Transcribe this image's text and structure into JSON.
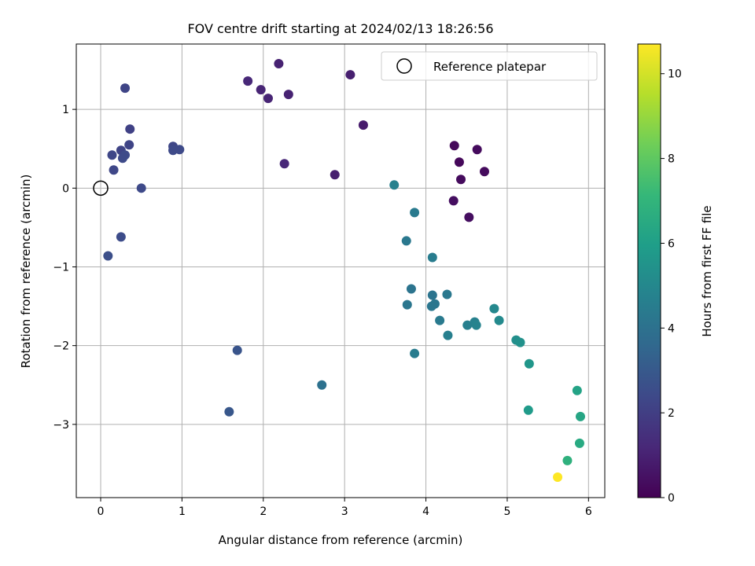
{
  "chart_data": {
    "type": "scatter",
    "title": "FOV centre drift starting at 2024/02/13 18:26:56",
    "xlabel": "Angular distance from reference (arcmin)",
    "ylabel": "Rotation from reference (arcmin)",
    "xlim": [
      -0.3,
      6.2
    ],
    "ylim": [
      -3.93,
      1.83
    ],
    "xticks": [
      0,
      1,
      2,
      3,
      4,
      5,
      6
    ],
    "xtick_labels": [
      "0",
      "1",
      "2",
      "3",
      "4",
      "5",
      "6"
    ],
    "yticks": [
      -3,
      -2,
      -1,
      0,
      1
    ],
    "ytick_labels": [
      "−3",
      "−2",
      "−1",
      "0",
      "1"
    ],
    "grid": true,
    "legend": {
      "position": "top-right",
      "label": "Reference platepar"
    },
    "reference": {
      "x": 0,
      "y": 0
    },
    "colorbar": {
      "label": "Hours from first FF file",
      "range": [
        0,
        10.7
      ],
      "ticks": [
        0,
        2,
        4,
        6,
        8,
        10
      ],
      "tick_labels": [
        "0",
        "2",
        "4",
        "6",
        "8",
        "10"
      ],
      "colormap": "viridis"
    },
    "series": [
      {
        "points": [
          {
            "x": 4.35,
            "y": 0.54,
            "h": 0.2
          },
          {
            "x": 4.63,
            "y": 0.49,
            "h": 0.3
          },
          {
            "x": 4.72,
            "y": 0.21,
            "h": 0.3
          },
          {
            "x": 4.41,
            "y": 0.33,
            "h": 0.2
          },
          {
            "x": 4.43,
            "y": 0.11,
            "h": 0.3
          },
          {
            "x": 4.34,
            "y": -0.16,
            "h": 0.4
          },
          {
            "x": 4.53,
            "y": -0.37,
            "h": 0.4
          },
          {
            "x": 3.23,
            "y": 0.8,
            "h": 0.8
          },
          {
            "x": 3.07,
            "y": 1.44,
            "h": 0.9
          },
          {
            "x": 2.88,
            "y": 0.17,
            "h": 0.9
          },
          {
            "x": 2.19,
            "y": 1.58,
            "h": 1.0
          },
          {
            "x": 2.31,
            "y": 1.19,
            "h": 1.0
          },
          {
            "x": 2.06,
            "y": 1.14,
            "h": 1.1
          },
          {
            "x": 1.97,
            "y": 1.25,
            "h": 1.1
          },
          {
            "x": 1.81,
            "y": 1.36,
            "h": 1.2
          },
          {
            "x": 2.26,
            "y": 0.31,
            "h": 1.2
          },
          {
            "x": 0.3,
            "y": 1.27,
            "h": 2.2
          },
          {
            "x": 0.36,
            "y": 0.75,
            "h": 2.1
          },
          {
            "x": 0.35,
            "y": 0.55,
            "h": 2.2
          },
          {
            "x": 0.25,
            "y": 0.48,
            "h": 2.2
          },
          {
            "x": 0.14,
            "y": 0.42,
            "h": 2.3
          },
          {
            "x": 0.3,
            "y": 0.42,
            "h": 2.4
          },
          {
            "x": 0.27,
            "y": 0.38,
            "h": 2.4
          },
          {
            "x": 0.16,
            "y": 0.23,
            "h": 2.3
          },
          {
            "x": 0.89,
            "y": 0.53,
            "h": 2.3
          },
          {
            "x": 0.89,
            "y": 0.48,
            "h": 2.4
          },
          {
            "x": 0.97,
            "y": 0.49,
            "h": 2.4
          },
          {
            "x": 0.5,
            "y": 0.0,
            "h": 2.4
          },
          {
            "x": 0.25,
            "y": -0.62,
            "h": 2.5
          },
          {
            "x": 0.09,
            "y": -0.86,
            "h": 2.6
          },
          {
            "x": 1.68,
            "y": -2.06,
            "h": 2.8
          },
          {
            "x": 1.58,
            "y": -2.84,
            "h": 2.9
          },
          {
            "x": 2.72,
            "y": -2.5,
            "h": 4.0
          },
          {
            "x": 3.61,
            "y": 0.04,
            "h": 4.7
          },
          {
            "x": 3.86,
            "y": -0.31,
            "h": 4.4
          },
          {
            "x": 3.76,
            "y": -0.67,
            "h": 4.3
          },
          {
            "x": 4.08,
            "y": -0.88,
            "h": 4.5
          },
          {
            "x": 3.82,
            "y": -1.28,
            "h": 4.1
          },
          {
            "x": 3.77,
            "y": -1.48,
            "h": 4.2
          },
          {
            "x": 4.08,
            "y": -1.36,
            "h": 4.1
          },
          {
            "x": 4.11,
            "y": -1.47,
            "h": 4.2
          },
          {
            "x": 4.07,
            "y": -1.5,
            "h": 4.2
          },
          {
            "x": 4.26,
            "y": -1.35,
            "h": 4.3
          },
          {
            "x": 4.17,
            "y": -1.68,
            "h": 4.4
          },
          {
            "x": 4.27,
            "y": -1.87,
            "h": 4.6
          },
          {
            "x": 3.86,
            "y": -2.1,
            "h": 4.5
          },
          {
            "x": 4.51,
            "y": -1.74,
            "h": 4.6
          },
          {
            "x": 4.6,
            "y": -1.7,
            "h": 4.7
          },
          {
            "x": 4.62,
            "y": -1.74,
            "h": 4.8
          },
          {
            "x": 4.84,
            "y": -1.53,
            "h": 5.0
          },
          {
            "x": 4.9,
            "y": -1.68,
            "h": 5.1
          },
          {
            "x": 5.11,
            "y": -1.93,
            "h": 5.3
          },
          {
            "x": 5.16,
            "y": -1.96,
            "h": 5.4
          },
          {
            "x": 5.27,
            "y": -2.23,
            "h": 5.6
          },
          {
            "x": 5.26,
            "y": -2.82,
            "h": 5.8
          },
          {
            "x": 5.86,
            "y": -2.57,
            "h": 6.2
          },
          {
            "x": 5.9,
            "y": -2.9,
            "h": 6.3
          },
          {
            "x": 5.89,
            "y": -3.24,
            "h": 6.5
          },
          {
            "x": 5.74,
            "y": -3.46,
            "h": 6.8
          },
          {
            "x": 5.62,
            "y": -3.67,
            "h": 10.7
          }
        ]
      }
    ]
  },
  "colors": {
    "grid": "#b0b0b0",
    "axes": "#000000",
    "reference_marker": "#000000",
    "viridis": [
      "#440154",
      "#482878",
      "#3e4989",
      "#31688e",
      "#26828e",
      "#1f9e89",
      "#35b779",
      "#6ece58",
      "#b5de2b",
      "#fde725"
    ]
  }
}
